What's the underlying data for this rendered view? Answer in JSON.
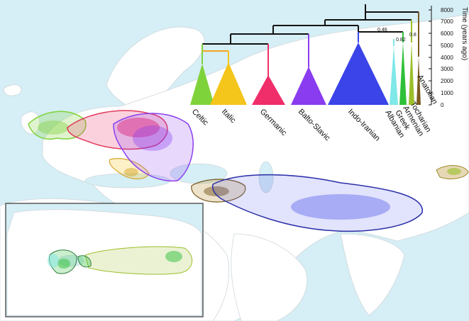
{
  "tree": {
    "axis_title": "Time (years ago)",
    "ticks": [
      "8000",
      "7000",
      "6000",
      "5000",
      "4000",
      "3000",
      "2000",
      "1000",
      "0"
    ],
    "clades": [
      {
        "name": "Celtic",
        "color": "#7fd33a"
      },
      {
        "name": "Italic",
        "color": "#f4c51a"
      },
      {
        "name": "Germanic",
        "color": "#ef2e6a"
      },
      {
        "name": "Balto-Slavic",
        "color": "#8a3df0"
      },
      {
        "name": "Indo-Iranian",
        "color": "#3a44e8"
      },
      {
        "name": "Albanian",
        "color": "#7fe8e8"
      },
      {
        "name": "Greek",
        "color": "#2fc03a"
      },
      {
        "name": "Armenian",
        "color": "#9bbf2a"
      },
      {
        "name": "Tocharian",
        "color": "#7a5a20"
      },
      {
        "name": "Anatolian",
        "color": "#b78f2a"
      }
    ],
    "node_support": [
      "0.46",
      "0.82",
      "0.8"
    ]
  },
  "map": {
    "background_sea": "#d6eef5",
    "land_color": "#ffffff",
    "inset_border_color": "#333333"
  }
}
